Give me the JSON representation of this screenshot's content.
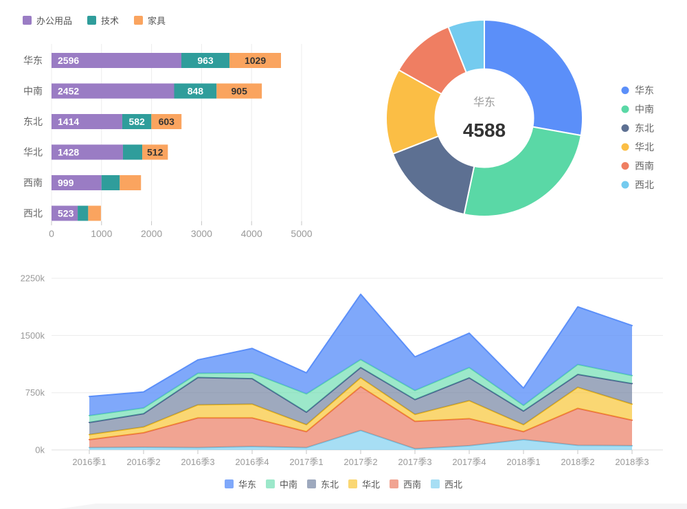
{
  "palette": {
    "华东": "#5B8FF9",
    "中南": "#5AD8A6",
    "东北": "#5D7092",
    "华北": "#F6BD16",
    "西南": "#E8684A",
    "西北": "#6DC8EC",
    "办公用品": "#9A7CC4",
    "技术": "#2F9D9B",
    "家具": "#FAA45F"
  },
  "chart_data": [
    {
      "type": "bar",
      "orientation": "horizontal",
      "categories": [
        "华东",
        "中南",
        "东北",
        "华北",
        "西南",
        "西北"
      ],
      "series": [
        {
          "name": "办公用品",
          "color": "#9A7CC4",
          "label_color": "#ffffff",
          "label_pos": "insideLeft",
          "values": [
            2596,
            2452,
            1414,
            1428,
            999,
            523
          ],
          "labels_shown": [
            true,
            true,
            true,
            true,
            true,
            true
          ]
        },
        {
          "name": "技术",
          "color": "#2F9D9B",
          "label_color": "#ffffff",
          "label_pos": "center",
          "values": [
            963,
            848,
            582,
            386,
            365,
            210
          ],
          "labels_shown": [
            true,
            true,
            true,
            false,
            false,
            false
          ]
        },
        {
          "name": "家具",
          "color": "#FAA45F",
          "label_color": "#333333",
          "label_pos": "center",
          "values": [
            1029,
            905,
            603,
            512,
            425,
            255
          ],
          "labels_shown": [
            true,
            true,
            true,
            true,
            false,
            false
          ]
        }
      ],
      "xlim": [
        0,
        5000
      ],
      "x_ticks": [
        "0",
        "1000",
        "2000",
        "3000",
        "4000",
        "5000"
      ],
      "legend": [
        "办公用品",
        "技术",
        "家具"
      ]
    },
    {
      "type": "pie",
      "donut": true,
      "center_label": {
        "title": "华东",
        "value": "4588"
      },
      "legend_position": "right",
      "slices": [
        {
          "name": "华东",
          "value": 4588,
          "color": "#5B8FF9"
        },
        {
          "name": "中南",
          "value": 4205,
          "color": "#5AD8A6"
        },
        {
          "name": "东北",
          "value": 2599,
          "color": "#5D7092"
        },
        {
          "name": "华北",
          "value": 2326,
          "color": "#FBBE45"
        },
        {
          "name": "西南",
          "value": 1789,
          "color": "#EF7E62"
        },
        {
          "name": "西北",
          "value": 988,
          "color": "#74CBEF"
        }
      ]
    },
    {
      "type": "area",
      "stacked": true,
      "x": [
        "2016季1",
        "2016季2",
        "2016季3",
        "2016季4",
        "2017季1",
        "2017季2",
        "2017季3",
        "2017季4",
        "2018季1",
        "2018季2",
        "2018季3"
      ],
      "y_ticks": {
        "values_k": [
          0,
          750,
          1500,
          2250
        ],
        "labels": [
          "0k",
          "750k",
          "1500k",
          "2250k"
        ]
      },
      "ylim_k": [
        0,
        2250
      ],
      "unit": "k",
      "series": [
        {
          "name": "华东",
          "color": "#5B8FF9",
          "stroke": "#5B8FF9",
          "fill_opacity": 0.78,
          "values": [
            250,
            210,
            175,
            320,
            275,
            855,
            440,
            450,
            225,
            755,
            655
          ]
        },
        {
          "name": "中南",
          "color": "#5AD8A6",
          "stroke": "#5AD8A6",
          "fill_opacity": 0.6,
          "values": [
            90,
            75,
            55,
            75,
            240,
            105,
            120,
            135,
            75,
            130,
            105
          ]
        },
        {
          "name": "东北",
          "color": "#5D7092",
          "stroke": "#44568B",
          "fill_opacity": 0.6,
          "values": [
            160,
            175,
            360,
            335,
            165,
            135,
            195,
            300,
            180,
            170,
            270
          ]
        },
        {
          "name": "华北",
          "color": "#F6BD16",
          "stroke": "#F5BC18",
          "fill_opacity": 0.6,
          "values": [
            65,
            75,
            170,
            180,
            90,
            115,
            90,
            235,
            90,
            275,
            210
          ]
        },
        {
          "name": "西南",
          "color": "#E8684A",
          "stroke": "#E8684A",
          "fill_opacity": 0.6,
          "values": [
            105,
            190,
            390,
            375,
            210,
            575,
            360,
            355,
            105,
            485,
            335
          ]
        },
        {
          "name": "西北",
          "color": "#6DC8EC",
          "stroke": "#6DC8EC",
          "fill_opacity": 0.6,
          "values": [
            30,
            35,
            30,
            45,
            30,
            255,
            15,
            55,
            135,
            60,
            55
          ]
        }
      ],
      "stack_order_bottom_to_top": [
        "西北",
        "西南",
        "华北",
        "东北",
        "中南",
        "华东"
      ],
      "legend": [
        "华东",
        "中南",
        "东北",
        "华北",
        "西南",
        "西北"
      ]
    }
  ]
}
